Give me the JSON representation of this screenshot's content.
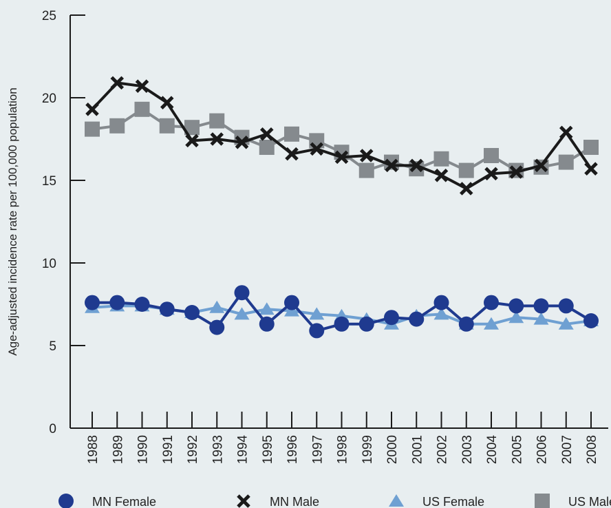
{
  "chart_data": {
    "type": "line",
    "title": "",
    "xlabel": "",
    "ylabel": "Age-adjusted incidence rate per 100,000 population",
    "ylim": [
      0,
      25
    ],
    "yticks": [
      0,
      5,
      10,
      15,
      20,
      25
    ],
    "grid": false,
    "legend_position": "bottom",
    "categories": [
      "1988",
      "1989",
      "1990",
      "1991",
      "1992",
      "1993",
      "1994",
      "1995",
      "1996",
      "1997",
      "1998",
      "1999",
      "2000",
      "2001",
      "2002",
      "2003",
      "2004",
      "2005",
      "2006",
      "2007",
      "2008"
    ],
    "series": [
      {
        "name": "US Male",
        "color": "#858a8e",
        "marker": "square",
        "values": [
          18.1,
          18.3,
          19.3,
          18.3,
          18.2,
          18.6,
          17.6,
          17.0,
          17.8,
          17.4,
          16.7,
          15.6,
          16.1,
          15.7,
          16.3,
          15.6,
          16.5,
          15.6,
          15.8,
          16.1,
          17.0
        ]
      },
      {
        "name": "MN Male",
        "color": "#1a1a1a",
        "marker": "x",
        "values": [
          19.3,
          20.9,
          20.7,
          19.7,
          17.4,
          17.5,
          17.3,
          17.8,
          16.6,
          16.9,
          16.4,
          16.5,
          15.9,
          15.9,
          15.3,
          14.5,
          15.4,
          15.5,
          15.9,
          17.9,
          15.7
        ]
      },
      {
        "name": "US Female",
        "color": "#6fa0d2",
        "marker": "triangle",
        "values": [
          7.3,
          7.4,
          7.4,
          7.2,
          7.0,
          7.3,
          6.9,
          7.2,
          7.1,
          6.9,
          6.8,
          6.6,
          6.3,
          6.8,
          6.9,
          6.3,
          6.3,
          6.7,
          6.6,
          6.3,
          6.5
        ]
      },
      {
        "name": "MN Female",
        "color": "#1f3a8f",
        "marker": "circle",
        "values": [
          7.6,
          7.6,
          7.5,
          7.2,
          7.0,
          6.1,
          8.2,
          6.3,
          7.6,
          5.9,
          6.3,
          6.3,
          6.7,
          6.6,
          7.6,
          6.3,
          7.6,
          7.4,
          7.4,
          7.4,
          6.5
        ]
      }
    ],
    "legend": [
      {
        "name": "MN Female",
        "marker": "circle",
        "color": "#1f3a8f"
      },
      {
        "name": "MN Male",
        "marker": "x",
        "color": "#1a1a1a"
      },
      {
        "name": "US Female",
        "marker": "triangle",
        "color": "#6fa0d2"
      },
      {
        "name": "US Male",
        "marker": "square",
        "color": "#858a8e"
      }
    ]
  }
}
